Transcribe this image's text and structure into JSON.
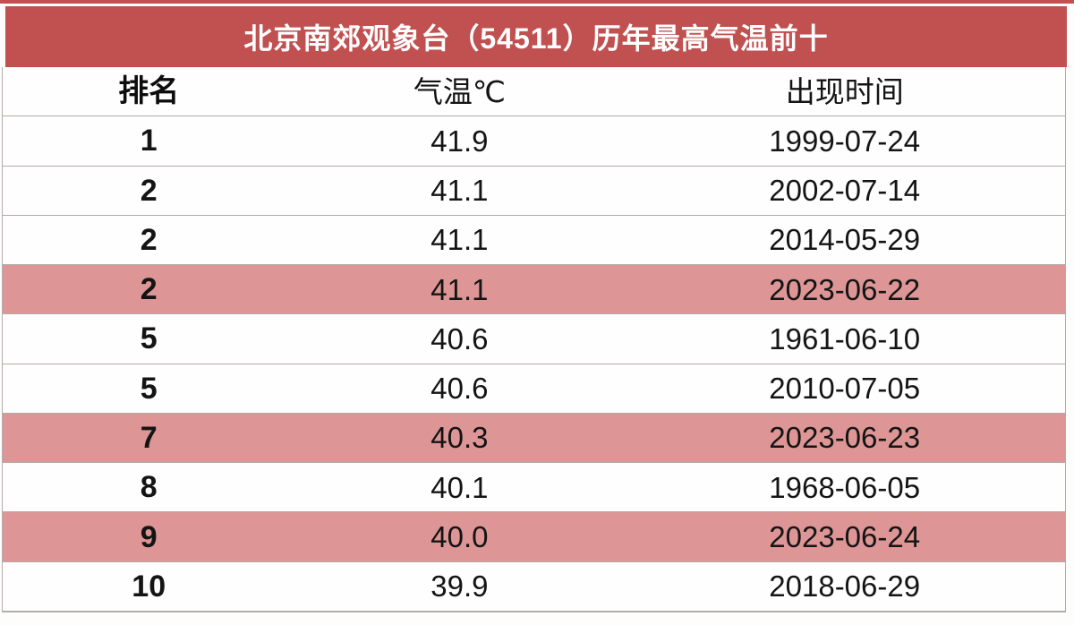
{
  "title_bar": {
    "text": "北京南郊观象台（54511）历年最高气温前十",
    "background": "#c05150",
    "text_color": "#ffffff"
  },
  "table": {
    "columns": [
      {
        "key": "rank",
        "label": "排名"
      },
      {
        "key": "temp",
        "label": "气温℃"
      },
      {
        "key": "date",
        "label": "出现时间"
      }
    ],
    "rows": [
      {
        "rank": "1",
        "temp": "41.9",
        "date": "1999-07-24",
        "highlight": false
      },
      {
        "rank": "2",
        "temp": "41.1",
        "date": "2002-07-14",
        "highlight": false
      },
      {
        "rank": "2",
        "temp": "41.1",
        "date": "2014-05-29",
        "highlight": false
      },
      {
        "rank": "2",
        "temp": "41.1",
        "date": "2023-06-22",
        "highlight": true
      },
      {
        "rank": "5",
        "temp": "40.6",
        "date": "1961-06-10",
        "highlight": false
      },
      {
        "rank": "5",
        "temp": "40.6",
        "date": "2010-07-05",
        "highlight": false
      },
      {
        "rank": "7",
        "temp": "40.3",
        "date": "2023-06-23",
        "highlight": true
      },
      {
        "rank": "8",
        "temp": "40.1",
        "date": "1968-06-05",
        "highlight": false
      },
      {
        "rank": "9",
        "temp": "40.0",
        "date": "2023-06-24",
        "highlight": true
      },
      {
        "rank": "10",
        "temp": "39.9",
        "date": "2018-06-29",
        "highlight": false
      }
    ]
  },
  "colors": {
    "accent_red": "#c05150",
    "highlight_pink": "#dd9595",
    "separator_gray": "#b3abab",
    "text_black": "#141414",
    "title_white": "#ffffff"
  },
  "chart_data": {
    "type": "table",
    "title": "北京南郊观象台（54511）历年最高气温前十",
    "columns": [
      "排名",
      "气温℃",
      "出现时间"
    ],
    "rows": [
      [
        "1",
        "41.9",
        "1999-07-24"
      ],
      [
        "2",
        "41.1",
        "2002-07-14"
      ],
      [
        "2",
        "41.1",
        "2014-05-29"
      ],
      [
        "2",
        "41.1",
        "2023-06-22"
      ],
      [
        "5",
        "40.6",
        "1961-06-10"
      ],
      [
        "5",
        "40.6",
        "2010-07-05"
      ],
      [
        "7",
        "40.3",
        "2023-06-23"
      ],
      [
        "8",
        "40.1",
        "1968-06-05"
      ],
      [
        "9",
        "40.0",
        "2023-06-24"
      ],
      [
        "10",
        "39.9",
        "2018-06-29"
      ]
    ],
    "highlighted_row_indices": [
      3,
      6,
      8
    ],
    "notes": "Rows with 2023 dates are highlighted pink; temperatures in degrees Celsius"
  }
}
